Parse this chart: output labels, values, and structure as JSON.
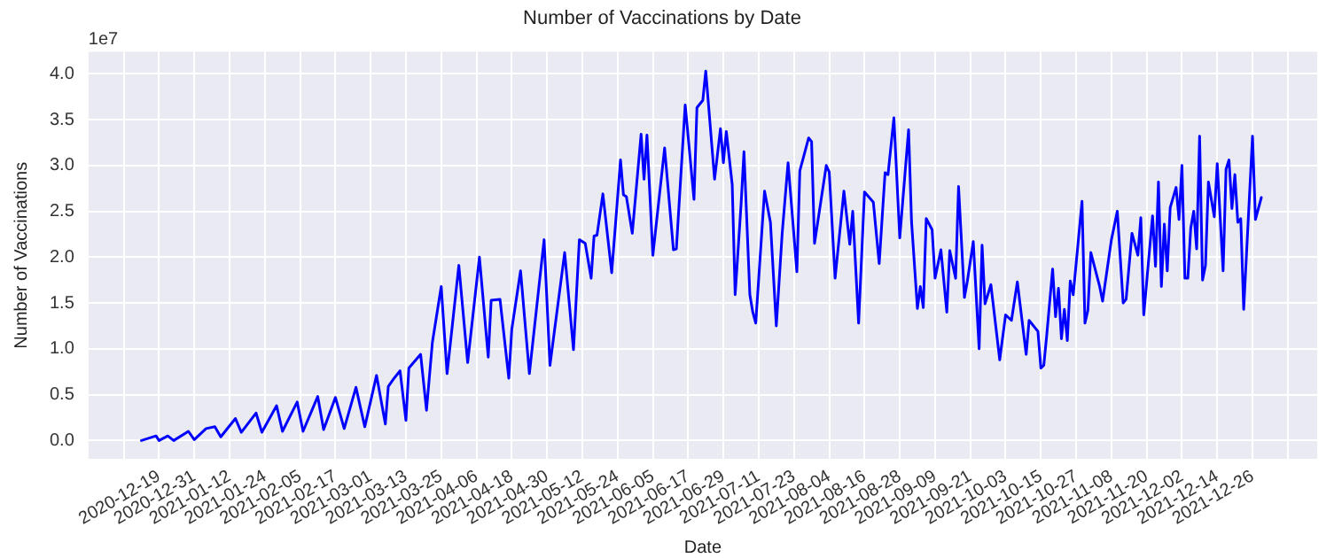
{
  "chart_data": {
    "type": "line",
    "title": "Number of Vaccinations by Date",
    "xlabel": "Date",
    "ylabel": "Number of Vaccinations",
    "annotations": [
      "1e7"
    ],
    "color": "#0000ff",
    "marker": "none",
    "line_style": "solid",
    "grid": true,
    "legend": false,
    "xlim": [
      "2020-11-25",
      "2022-01-17"
    ],
    "xticks": [
      {
        "value": "2020-12-07",
        "label": null
      },
      "2020-12-19",
      "2020-12-31",
      "2021-01-12",
      "2021-01-24",
      "2021-02-05",
      "2021-02-17",
      "2021-03-01",
      "2021-03-13",
      "2021-03-25",
      "2021-04-06",
      "2021-04-18",
      "2021-04-30",
      "2021-05-12",
      "2021-05-24",
      "2021-06-05",
      "2021-06-17",
      "2021-06-29",
      "2021-07-11",
      "2021-07-23",
      "2021-08-04",
      "2021-08-16",
      "2021-08-28",
      "2021-09-09",
      "2021-09-21",
      "2021-10-03",
      "2021-10-15",
      "2021-10-27",
      "2021-11-08",
      "2021-11-20",
      "2021-12-02",
      "2021-12-14",
      "2021-12-26",
      {
        "value": "2022-01-07",
        "label": null
      }
    ],
    "ylim": [
      -0.2,
      4.24
    ],
    "yticks": [
      {
        "value": 0,
        "label": "0.0"
      },
      0.5,
      {
        "value": 1,
        "label": "1.0"
      },
      1.5,
      {
        "value": 2,
        "label": "2.0"
      },
      2.5,
      {
        "value": 3,
        "label": "3.0"
      },
      3.5,
      {
        "value": 4,
        "label": "4.0"
      }
    ],
    "x": [
      "2020-12-13",
      "2020-12-18",
      "2020-12-19",
      "2020-12-22",
      "2020-12-24",
      "2020-12-29",
      "2020-12-31",
      "2021-01-04",
      "2021-01-07",
      "2021-01-09",
      "2021-01-14",
      "2021-01-16",
      "2021-01-21",
      "2021-01-23",
      "2021-01-28",
      "2021-01-30",
      "2021-02-04",
      "2021-02-06",
      "2021-02-11",
      "2021-02-13",
      "2021-02-17",
      "2021-02-20",
      "2021-02-24",
      "2021-02-27",
      "2021-03-03",
      "2021-03-06",
      "2021-03-07",
      "2021-03-09",
      "2021-03-11",
      "2021-03-13",
      "2021-03-14",
      "2021-03-18",
      "2021-03-20",
      "2021-03-22",
      "2021-03-25",
      "2021-03-27",
      "2021-03-31",
      "2021-04-03",
      "2021-04-07",
      "2021-04-10",
      "2021-04-11",
      "2021-04-14",
      "2021-04-17",
      "2021-04-18",
      "2021-04-21",
      "2021-04-24",
      "2021-04-29",
      "2021-05-01",
      "2021-05-06",
      "2021-05-09",
      "2021-05-11",
      "2021-05-13",
      "2021-05-15",
      "2021-05-16",
      "2021-05-17",
      "2021-05-19",
      "2021-05-22",
      "2021-05-25",
      "2021-05-26",
      "2021-05-27",
      "2021-05-29",
      "2021-06-01",
      "2021-06-02",
      "2021-06-03",
      "2021-06-05",
      "2021-06-09",
      "2021-06-12",
      "2021-06-13",
      "2021-06-16",
      "2021-06-19",
      "2021-06-20",
      "2021-06-22",
      "2021-06-23",
      "2021-06-26",
      "2021-06-28",
      "2021-06-29",
      "2021-06-30",
      "2021-07-02",
      "2021-07-03",
      "2021-07-05",
      "2021-07-06",
      "2021-07-08",
      "2021-07-09",
      "2021-07-10",
      "2021-07-13",
      "2021-07-15",
      "2021-07-17",
      "2021-07-19",
      "2021-07-21",
      "2021-07-24",
      "2021-07-25",
      "2021-07-28",
      "2021-07-29",
      "2021-07-30",
      "2021-08-03",
      "2021-08-04",
      "2021-08-06",
      "2021-08-09",
      "2021-08-11",
      "2021-08-12",
      "2021-08-14",
      "2021-08-16",
      "2021-08-19",
      "2021-08-21",
      "2021-08-23",
      "2021-08-24",
      "2021-08-26",
      "2021-08-28",
      "2021-08-31",
      "2021-09-01",
      "2021-09-03",
      "2021-09-04",
      "2021-09-05",
      "2021-09-06",
      "2021-09-08",
      "2021-09-09",
      "2021-09-11",
      "2021-09-13",
      "2021-09-14",
      "2021-09-16",
      "2021-09-17",
      "2021-09-19",
      "2021-09-20",
      "2021-09-22",
      "2021-09-24",
      "2021-09-25",
      "2021-09-26",
      "2021-09-28",
      "2021-10-01",
      "2021-10-03",
      "2021-10-05",
      "2021-10-07",
      "2021-10-10",
      "2021-10-11",
      "2021-10-14",
      "2021-10-15",
      "2021-10-16",
      "2021-10-17",
      "2021-10-19",
      "2021-10-20",
      "2021-10-21",
      "2021-10-22",
      "2021-10-23",
      "2021-10-24",
      "2021-10-25",
      "2021-10-26",
      "2021-10-29",
      "2021-10-30",
      "2021-10-31",
      "2021-11-01",
      "2021-11-04",
      "2021-11-05",
      "2021-11-08",
      "2021-11-10",
      "2021-11-12",
      "2021-11-13",
      "2021-11-15",
      "2021-11-17",
      "2021-11-18",
      "2021-11-19",
      "2021-11-22",
      "2021-11-23",
      "2021-11-24",
      "2021-11-25",
      "2021-11-26",
      "2021-11-27",
      "2021-11-28",
      "2021-11-30",
      "2021-12-01",
      "2021-12-02",
      "2021-12-03",
      "2021-12-04",
      "2021-12-05",
      "2021-12-06",
      "2021-12-07",
      "2021-12-08",
      "2021-12-09",
      "2021-12-10",
      "2021-12-11",
      "2021-12-13",
      "2021-12-14",
      "2021-12-16",
      "2021-12-17",
      "2021-12-18",
      "2021-12-19",
      "2021-12-20",
      "2021-12-21",
      "2021-12-22",
      "2021-12-23",
      "2021-12-26",
      "2021-12-27",
      "2021-12-29"
    ],
    "values": [
      0,
      0.05,
      0,
      0.05,
      0,
      0.1,
      0.01,
      0.13,
      0.15,
      0.04,
      0.24,
      0.09,
      0.3,
      0.09,
      0.38,
      0.1,
      0.42,
      0.1,
      0.48,
      0.12,
      0.47,
      0.13,
      0.58,
      0.15,
      0.71,
      0.18,
      0.59,
      0.68,
      0.76,
      0.22,
      0.79,
      0.94,
      0.33,
      1.07,
      1.68,
      0.73,
      1.91,
      0.85,
      2,
      0.91,
      1.53,
      1.54,
      0.68,
      1.21,
      1.85,
      0.73,
      2.19,
      0.82,
      2.05,
      0.99,
      2.19,
      2.15,
      1.77,
      2.23,
      2.24,
      2.69,
      1.83,
      3.06,
      2.68,
      2.66,
      2.26,
      3.34,
      2.85,
      3.33,
      2.02,
      3.19,
      2.08,
      2.09,
      3.66,
      2.63,
      3.63,
      3.71,
      4.03,
      2.85,
      3.4,
      3.03,
      3.37,
      2.79,
      1.59,
      2.57,
      3.15,
      1.59,
      1.4,
      1.28,
      2.72,
      2.38,
      1.25,
      2.26,
      3.03,
      1.84,
      2.94,
      3.3,
      3.26,
      2.15,
      3,
      2.93,
      1.77,
      2.72,
      2.14,
      2.5,
      1.28,
      2.71,
      2.6,
      1.93,
      2.92,
      2.9,
      3.52,
      2.21,
      3.39,
      2.39,
      1.44,
      1.68,
      1.45,
      2.42,
      2.3,
      1.77,
      2.08,
      1.4,
      2.07,
      1.77,
      2.77,
      1.56,
      1.74,
      2.17,
      1,
      2.13,
      1.49,
      1.7,
      0.88,
      1.37,
      1.31,
      1.73,
      0.94,
      1.31,
      1.19,
      0.79,
      0.82,
      1.15,
      1.87,
      1.35,
      1.66,
      1.11,
      1.43,
      1.09,
      1.74,
      1.59,
      2.61,
      1.28,
      1.42,
      2.05,
      1.68,
      1.52,
      2.19,
      2.5,
      1.5,
      1.54,
      2.26,
      2.02,
      2.43,
      1.37,
      2.45,
      1.9,
      2.82,
      1.68,
      2.36,
      1.85,
      2.54,
      2.76,
      2.41,
      3,
      1.77,
      1.77,
      2.32,
      2.5,
      2.09,
      3.32,
      1.75,
      1.91,
      2.82,
      2.44,
      3.02,
      1.85,
      2.96,
      3.06,
      2.53,
      2.9,
      2.38,
      2.42,
      1.43,
      3.32,
      2.41,
      2.65
    ]
  }
}
